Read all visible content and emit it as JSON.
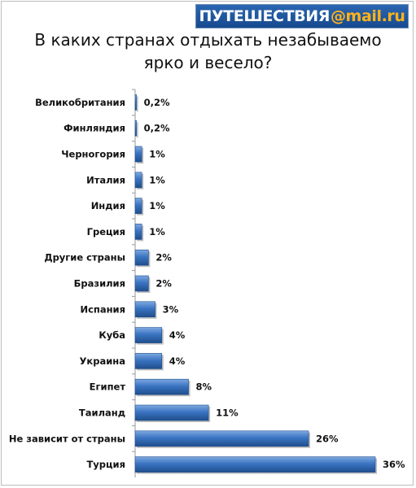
{
  "brand": {
    "text": "ПУТЕШЕСТВИЯ",
    "accent": "@mail.ru"
  },
  "title": {
    "line1": "В каких странах отдыхать незабываемо",
    "line2": "ярко и весело?"
  },
  "colors": {
    "bar": "#3a74c2",
    "bar_light": "#7fa9e0",
    "bar_dark": "#1f4e8c",
    "brand_bg": "#1f559e",
    "brand_accent": "#ffb21a"
  },
  "chart_data": {
    "type": "bar",
    "orientation": "horizontal",
    "title": "В каких странах отдыхать незабываемо ярко и весело?",
    "categories": [
      "Великобритания",
      "Финляндия",
      "Черногория",
      "Италия",
      "Индия",
      "Греция",
      "Другие страны",
      "Бразилия",
      "Испания",
      "Куба",
      "Украина",
      "Египет",
      "Таиланд",
      "Не зависит от страны",
      "Турция"
    ],
    "values": [
      0.2,
      0.2,
      1,
      1,
      1,
      1,
      2,
      2,
      3,
      4,
      4,
      8,
      11,
      26,
      36
    ],
    "labels": [
      "0,2%",
      "0,2%",
      "1%",
      "1%",
      "1%",
      "1%",
      "2%",
      "2%",
      "3%",
      "4%",
      "4%",
      "8%",
      "11%",
      "26%",
      "36%"
    ],
    "unit": "%",
    "xlim": [
      0,
      36
    ],
    "grid": false,
    "legend": "none"
  }
}
